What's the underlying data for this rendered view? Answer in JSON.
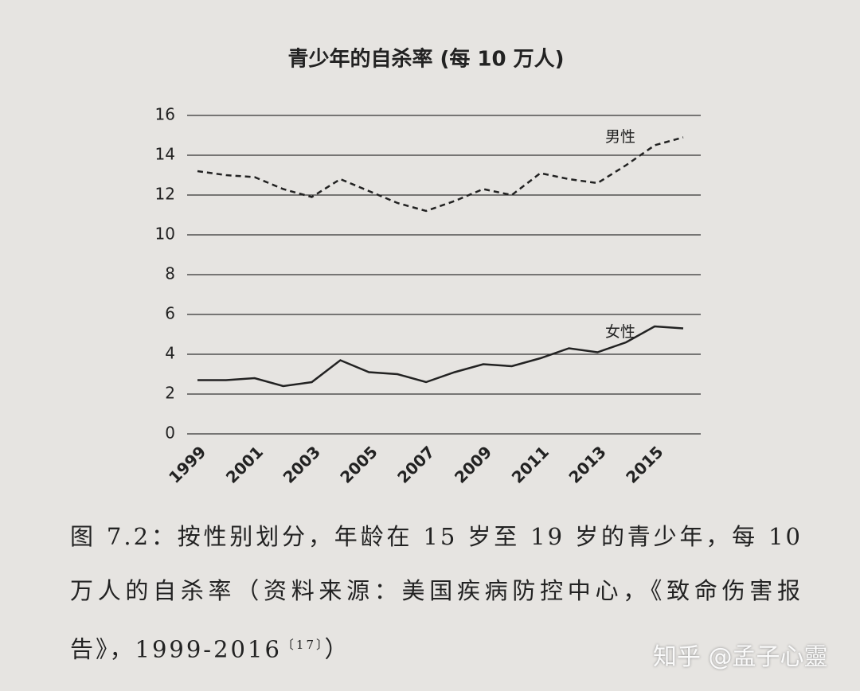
{
  "chart_data": {
    "type": "line",
    "title": "青少年的自杀率 (每 10 万人)",
    "x": [
      1999,
      2000,
      2001,
      2002,
      2003,
      2004,
      2005,
      2006,
      2007,
      2008,
      2009,
      2010,
      2011,
      2012,
      2013,
      2014,
      2015,
      2016
    ],
    "xlim": [
      1999,
      2016
    ],
    "xticks": [
      1999,
      2001,
      2003,
      2005,
      2007,
      2009,
      2011,
      2013,
      2015
    ],
    "ylim": [
      0,
      16
    ],
    "yticks": [
      0,
      2,
      4,
      6,
      8,
      10,
      12,
      14,
      16
    ],
    "grid": true,
    "series": [
      {
        "name": "男性",
        "color": "#222222",
        "dash": "dashed",
        "values": [
          13.2,
          13.0,
          12.9,
          12.3,
          11.9,
          12.8,
          12.2,
          11.6,
          11.2,
          11.7,
          12.3,
          12.0,
          13.1,
          12.8,
          12.6,
          13.5,
          14.5,
          14.9
        ]
      },
      {
        "name": "女性",
        "color": "#222222",
        "dash": "solid",
        "values": [
          2.7,
          2.7,
          2.8,
          2.4,
          2.6,
          3.7,
          3.1,
          3.0,
          2.6,
          3.1,
          3.5,
          3.4,
          3.8,
          4.3,
          4.1,
          4.6,
          5.4,
          5.3
        ]
      }
    ]
  },
  "caption": {
    "text": "图 7.2：按性别划分，年龄在 15 岁至 19 岁的青少年，每 10 万人的自杀率（资料来源：美国疾病防控中心，《致命伤害报告》，1999-2016",
    "ref": "〔17〕",
    "end": "）"
  },
  "watermark": "知乎 @孟子心靈"
}
